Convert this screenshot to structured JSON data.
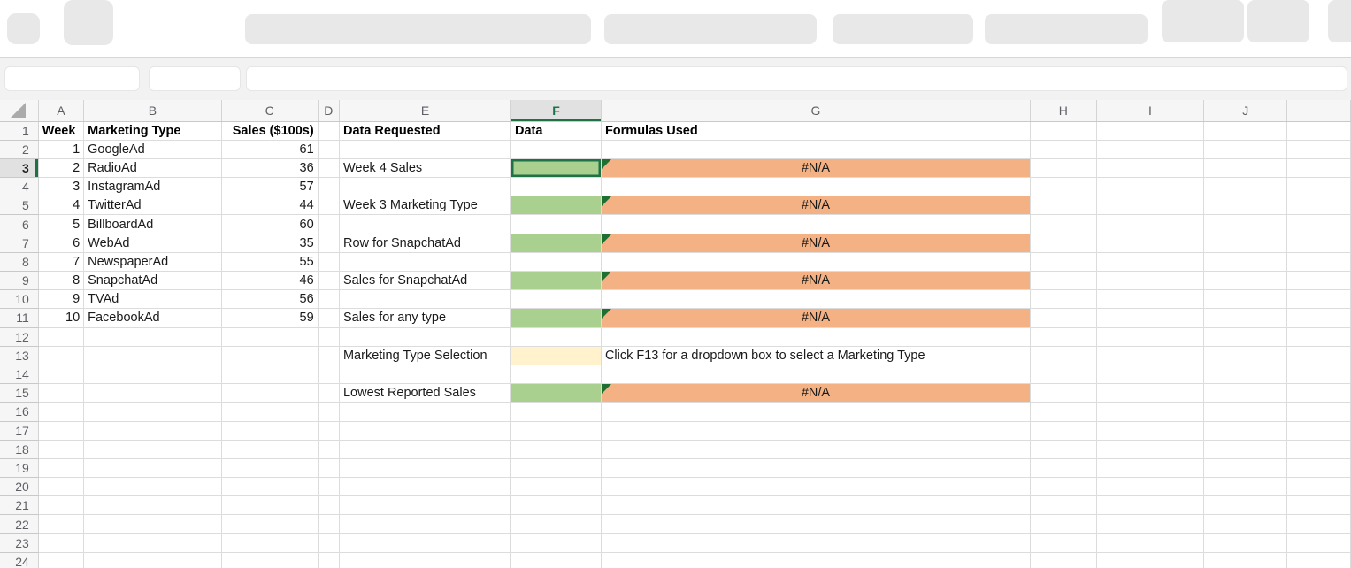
{
  "formula_bar": {
    "name_box_value": "",
    "formula_value": ""
  },
  "sheet": {
    "selected_cell": "F3",
    "selected_column": "F",
    "selected_row": 3,
    "row_count": 24,
    "column_letters": [
      "A",
      "B",
      "C",
      "D",
      "E",
      "F",
      "G",
      "H",
      "I",
      "J"
    ],
    "colors": {
      "green_fill": "#a9d08e",
      "orange_fill": "#f4b183",
      "yellow_fill": "#fff2cc",
      "selection_green": "#1f7245",
      "error_flag_green": "#1e6f33"
    },
    "cells": {
      "A1": {
        "t": "Week",
        "bold": true
      },
      "B1": {
        "t": "Marketing Type",
        "bold": true
      },
      "C1": {
        "t": "Sales ($100s)",
        "bold": true,
        "align": "right"
      },
      "E1": {
        "t": "Data Requested",
        "bold": true
      },
      "F1": {
        "t": "Data",
        "bold": true
      },
      "G1": {
        "t": "Formulas Used",
        "bold": true
      },
      "A2": {
        "t": "1",
        "align": "right"
      },
      "B2": {
        "t": "GoogleAd"
      },
      "C2": {
        "t": "61",
        "align": "right"
      },
      "A3": {
        "t": "2",
        "align": "right"
      },
      "B3": {
        "t": "RadioAd"
      },
      "C3": {
        "t": "36",
        "align": "right"
      },
      "E3": {
        "t": "Week 4 Sales"
      },
      "F3": {
        "fill": "green",
        "selected": true
      },
      "G3": {
        "t": "#N/A",
        "align": "center",
        "fill": "orange",
        "flag": true
      },
      "A4": {
        "t": "3",
        "align": "right"
      },
      "B4": {
        "t": "InstagramAd"
      },
      "C4": {
        "t": "57",
        "align": "right"
      },
      "A5": {
        "t": "4",
        "align": "right"
      },
      "B5": {
        "t": "TwitterAd"
      },
      "C5": {
        "t": "44",
        "align": "right"
      },
      "E5": {
        "t": "Week 3 Marketing Type"
      },
      "F5": {
        "fill": "green"
      },
      "G5": {
        "t": "#N/A",
        "align": "center",
        "fill": "orange",
        "flag": true
      },
      "A6": {
        "t": "5",
        "align": "right"
      },
      "B6": {
        "t": "BillboardAd"
      },
      "C6": {
        "t": "60",
        "align": "right"
      },
      "A7": {
        "t": "6",
        "align": "right"
      },
      "B7": {
        "t": "WebAd"
      },
      "C7": {
        "t": "35",
        "align": "right"
      },
      "E7": {
        "t": "Row for SnapchatAd"
      },
      "F7": {
        "fill": "green"
      },
      "G7": {
        "t": "#N/A",
        "align": "center",
        "fill": "orange",
        "flag": true
      },
      "A8": {
        "t": "7",
        "align": "right"
      },
      "B8": {
        "t": "NewspaperAd"
      },
      "C8": {
        "t": "55",
        "align": "right"
      },
      "A9": {
        "t": "8",
        "align": "right"
      },
      "B9": {
        "t": "SnapchatAd"
      },
      "C9": {
        "t": "46",
        "align": "right"
      },
      "E9": {
        "t": "Sales for SnapchatAd"
      },
      "F9": {
        "fill": "green"
      },
      "G9": {
        "t": "#N/A",
        "align": "center",
        "fill": "orange",
        "flag": true
      },
      "A10": {
        "t": "9",
        "align": "right"
      },
      "B10": {
        "t": "TVAd"
      },
      "C10": {
        "t": "56",
        "align": "right"
      },
      "A11": {
        "t": "10",
        "align": "right"
      },
      "B11": {
        "t": "FacebookAd"
      },
      "C11": {
        "t": "59",
        "align": "right"
      },
      "E11": {
        "t": "Sales for any type"
      },
      "F11": {
        "fill": "green"
      },
      "G11": {
        "t": "#N/A",
        "align": "center",
        "fill": "orange",
        "flag": true
      },
      "E13": {
        "t": "Marketing Type Selection"
      },
      "F13": {
        "fill": "yellow"
      },
      "G13": {
        "t": "Click F13 for a dropdown box to select a Marketing Type"
      },
      "E15": {
        "t": "Lowest Reported Sales"
      },
      "F15": {
        "fill": "green"
      },
      "G15": {
        "t": "#N/A",
        "align": "center",
        "fill": "orange",
        "flag": true
      }
    }
  }
}
